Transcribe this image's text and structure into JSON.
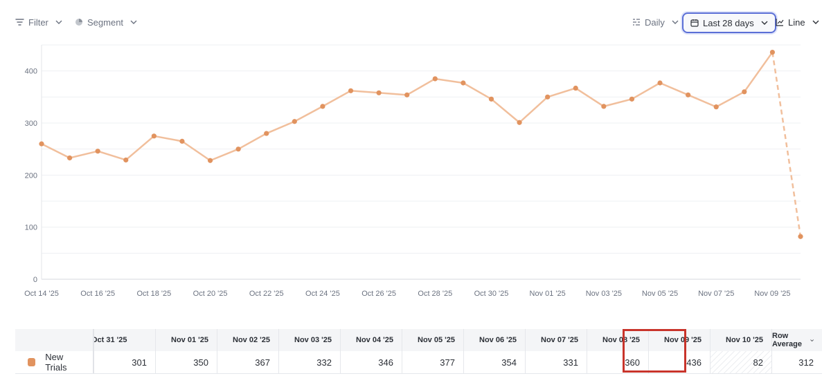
{
  "toolbar": {
    "filter_label": "Filter",
    "segment_label": "Segment",
    "interval_label": "Daily",
    "range_label": "Last 28 days",
    "chart_type_label": "Line"
  },
  "chart_data": {
    "type": "line",
    "x": [
      "Oct 14 '25",
      "Oct 15 '25",
      "Oct 16 '25",
      "Oct 17 '25",
      "Oct 18 '25",
      "Oct 19 '25",
      "Oct 20 '25",
      "Oct 21 '25",
      "Oct 22 '25",
      "Oct 23 '25",
      "Oct 24 '25",
      "Oct 25 '25",
      "Oct 26 '25",
      "Oct 27 '25",
      "Oct 28 '25",
      "Oct 29 '25",
      "Oct 30 '25",
      "Oct 31 '25",
      "Nov 01 '25",
      "Nov 02 '25",
      "Nov 03 '25",
      "Nov 04 '25",
      "Nov 05 '25",
      "Nov 06 '25",
      "Nov 07 '25",
      "Nov 08 '25",
      "Nov 09 '25",
      "Nov 10 '25"
    ],
    "x_tick_labels": [
      "Oct 14 '25",
      "Oct 16 '25",
      "Oct 18 '25",
      "Oct 20 '25",
      "Oct 22 '25",
      "Oct 24 '25",
      "Oct 26 '25",
      "Oct 28 '25",
      "Oct 30 '25",
      "Nov 01 '25",
      "Nov 03 '25",
      "Nov 05 '25",
      "Nov 07 '25",
      "Nov 09 '25"
    ],
    "series": [
      {
        "name": "New Trials",
        "color": "#e1935f",
        "values": [
          260,
          233,
          246,
          229,
          275,
          265,
          228,
          250,
          280,
          303,
          332,
          362,
          358,
          354,
          385,
          377,
          346,
          301,
          350,
          367,
          332,
          346,
          377,
          354,
          331,
          360,
          436,
          82
        ]
      }
    ],
    "partial_last_point": true,
    "ylim": [
      0,
      450
    ],
    "y_ticks": [
      0,
      100,
      200,
      300,
      400
    ],
    "grid": true,
    "title": "",
    "xlabel": "",
    "ylabel": ""
  },
  "table": {
    "row_label": "New Trials",
    "row_color": "#e1935f",
    "columns": [
      {
        "header": "Oct 31 '25",
        "value": "301"
      },
      {
        "header": "Nov 01 '25",
        "value": "350"
      },
      {
        "header": "Nov 02 '25",
        "value": "367"
      },
      {
        "header": "Nov 03 '25",
        "value": "332"
      },
      {
        "header": "Nov 04 '25",
        "value": "346"
      },
      {
        "header": "Nov 05 '25",
        "value": "377"
      },
      {
        "header": "Nov 06 '25",
        "value": "354"
      },
      {
        "header": "Nov 07 '25",
        "value": "331"
      },
      {
        "header": "Nov 08 '25",
        "value": "360"
      },
      {
        "header": "Nov 09 '25",
        "value": "436"
      },
      {
        "header": "Nov 10 '25",
        "value": "82"
      }
    ],
    "average_header": "Row Average",
    "average_value": "312",
    "highlight_color": "#c8342b"
  }
}
